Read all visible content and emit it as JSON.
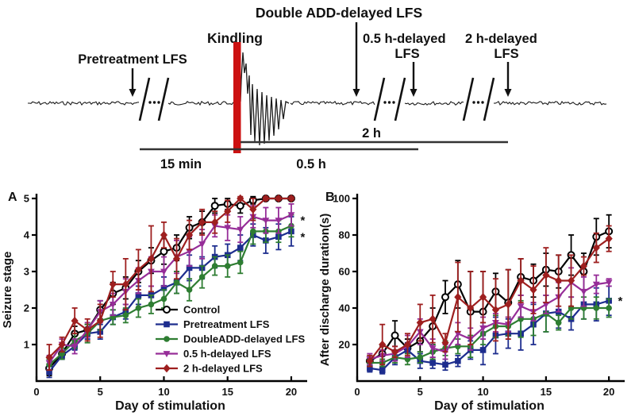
{
  "schematic": {
    "title": "Double ADD-delayed LFS",
    "kindling_label": "Kindling",
    "pretreatment_label": "Pretreatment LFS",
    "half_delay_label": "0.5 h-delayed",
    "two_delay_label": "2 h-delayed",
    "lfs_label_1": "LFS",
    "lfs_label_2": "LFS",
    "duration_15min": "15 min",
    "duration_half_hour": "0.5 h",
    "duration_two_hour": "2 h",
    "kindling_bar_color": "#cc1111",
    "trace_color": "#1a1a1a"
  },
  "colors": {
    "axis": "#000000",
    "control": "#000000",
    "pretreatment": "#1d2d8e",
    "doubleadd": "#2e7d32",
    "half_delayed": "#962d98",
    "two_delayed": "#9e1f1f"
  },
  "chart_data": [
    {
      "id": "A",
      "type": "line",
      "panel_label": "A",
      "xlabel": "Day of stimulation",
      "ylabel": "Seizure stage",
      "xlim": [
        0,
        21
      ],
      "ylim": [
        0,
        5
      ],
      "xticks": [
        0,
        5,
        10,
        15,
        20
      ],
      "yticks": [
        1,
        2,
        3,
        4,
        5
      ],
      "x": [
        1,
        2,
        3,
        4,
        5,
        6,
        7,
        8,
        9,
        10,
        11,
        12,
        13,
        14,
        15,
        16,
        17,
        18,
        19,
        20
      ],
      "legend_show": true,
      "series": [
        {
          "name": "Control",
          "marker": "open-circle",
          "color": "#000000",
          "values": [
            0.35,
            0.75,
            1.3,
            1.4,
            1.95,
            2.4,
            2.55,
            3.0,
            3.3,
            3.55,
            3.65,
            4.2,
            4.35,
            4.8,
            4.85,
            4.8,
            4.95,
            5.0,
            5.0,
            5.0
          ],
          "errors": [
            0.2,
            0.15,
            0.2,
            0.15,
            0.25,
            0.3,
            0.3,
            0.3,
            0.35,
            0.35,
            0.35,
            0.3,
            0.3,
            0.2,
            0.15,
            0.2,
            0.1,
            0.05,
            0.05,
            0.05
          ]
        },
        {
          "name": "Pretreatment LFS",
          "marker": "square",
          "color": "#1d2d8e",
          "values": [
            0.25,
            0.7,
            0.95,
            1.3,
            1.35,
            1.75,
            1.9,
            2.35,
            2.35,
            2.55,
            2.7,
            3.1,
            3.1,
            3.4,
            3.45,
            3.65,
            4.0,
            3.85,
            3.95,
            4.1
          ],
          "errors": [
            0.15,
            0.1,
            0.1,
            0.15,
            0.2,
            0.2,
            0.2,
            0.25,
            0.25,
            0.3,
            0.3,
            0.35,
            0.3,
            0.3,
            0.3,
            0.35,
            0.3,
            0.35,
            0.35,
            0.4
          ]
        },
        {
          "name": "DoubleADD-delayed LFS",
          "marker": "circle",
          "color": "#2e7d32",
          "values": [
            0.45,
            0.75,
            1.1,
            1.3,
            1.65,
            1.75,
            1.8,
            2.0,
            2.1,
            2.25,
            2.7,
            2.5,
            2.85,
            3.15,
            3.15,
            3.25,
            4.1,
            4.1,
            4.1,
            4.25
          ],
          "errors": [
            0.15,
            0.15,
            0.2,
            0.25,
            0.25,
            0.2,
            0.2,
            0.25,
            0.25,
            0.25,
            0.3,
            0.3,
            0.3,
            0.25,
            0.3,
            0.3,
            0.35,
            0.3,
            0.3,
            0.3
          ]
        },
        {
          "name": "0.5 h-delayed LFS",
          "marker": "triangle-down",
          "color": "#962d98",
          "values": [
            0.5,
            1.0,
            0.95,
            1.4,
            1.9,
            2.1,
            2.45,
            2.75,
            3.0,
            3.0,
            3.4,
            3.55,
            3.75,
            4.25,
            4.2,
            4.15,
            4.5,
            4.4,
            4.4,
            4.55
          ],
          "errors": [
            0.2,
            0.15,
            0.2,
            0.2,
            0.3,
            0.3,
            0.35,
            0.35,
            0.4,
            0.4,
            0.45,
            0.4,
            0.4,
            0.3,
            0.35,
            0.35,
            0.3,
            0.35,
            0.35,
            0.3
          ]
        },
        {
          "name": "2 h-delayed LFS",
          "marker": "diamond",
          "color": "#9e1f1f",
          "values": [
            0.65,
            1.0,
            1.65,
            1.4,
            1.65,
            2.65,
            2.65,
            3.05,
            3.35,
            4.0,
            3.35,
            4.0,
            4.35,
            4.35,
            4.65,
            5.0,
            4.7,
            5.0,
            5.0,
            5.0
          ],
          "errors": [
            0.35,
            0.2,
            0.35,
            0.3,
            0.45,
            0.35,
            0.7,
            0.55,
            0.9,
            0.35,
            0.55,
            0.4,
            0.35,
            0.3,
            0.3,
            0.05,
            0.3,
            0.05,
            0.05,
            0.05
          ]
        }
      ],
      "annotations": [
        {
          "text": "*",
          "x": 20.9,
          "y": 4.4
        },
        {
          "text": "*",
          "x": 20.9,
          "y": 3.95
        }
      ]
    },
    {
      "id": "B",
      "type": "line",
      "panel_label": "B",
      "xlabel": "Day of stimulation",
      "ylabel": "After discharge duration(s)",
      "xlim": [
        0,
        21
      ],
      "ylim": [
        0,
        100
      ],
      "xticks": [
        0,
        5,
        10,
        15,
        20
      ],
      "yticks": [
        20,
        40,
        60,
        80,
        100
      ],
      "x": [
        1,
        2,
        3,
        4,
        5,
        6,
        7,
        8,
        9,
        10,
        11,
        12,
        13,
        14,
        15,
        16,
        17,
        18,
        19,
        20
      ],
      "legend_show": false,
      "series": [
        {
          "name": "Control",
          "marker": "open-circle",
          "color": "#000000",
          "values": [
            11,
            15,
            25,
            18,
            22,
            30,
            46,
            53,
            38,
            38,
            49,
            43,
            57,
            55,
            61,
            60,
            69,
            60,
            79,
            82
          ],
          "errors": [
            3,
            4,
            8,
            5,
            6,
            10,
            9,
            13,
            22,
            22,
            10,
            18,
            10,
            9,
            9,
            9,
            11,
            10,
            10,
            9
          ]
        },
        {
          "name": "Pretreatment LFS",
          "marker": "square",
          "color": "#1d2d8e",
          "values": [
            7,
            6,
            13,
            17,
            11,
            10,
            9,
            11,
            17,
            17,
            25,
            26,
            26,
            31,
            37,
            38,
            34,
            42,
            42,
            44
          ],
          "errors": [
            2,
            2,
            4,
            4,
            4,
            3,
            3,
            3,
            5,
            8,
            10,
            8,
            9,
            11,
            10,
            9,
            6,
            8,
            9,
            8
          ]
        },
        {
          "name": "DoubleADD-delayed LFS",
          "marker": "circle",
          "color": "#2e7d32",
          "values": [
            10,
            10,
            13,
            12,
            13,
            16,
            18,
            19,
            19,
            26,
            30,
            30,
            34,
            34,
            37,
            32,
            40,
            40,
            40,
            40
          ],
          "errors": [
            2,
            2,
            3,
            3,
            3,
            4,
            4,
            4,
            6,
            6,
            6,
            5,
            10,
            9,
            10,
            4,
            6,
            6,
            6,
            5
          ]
        },
        {
          "name": "0.5 h-delayed LFS",
          "marker": "triangle-down",
          "color": "#962d98",
          "values": [
            12,
            14,
            15,
            19,
            27,
            18,
            16,
            26,
            23,
            29,
            32,
            31,
            41,
            38,
            42,
            46,
            54,
            49,
            53,
            54
          ],
          "errors": [
            3,
            3,
            4,
            6,
            7,
            5,
            4,
            6,
            6,
            6,
            5,
            4,
            6,
            5,
            5,
            8,
            8,
            8,
            5,
            2
          ]
        },
        {
          "name": "2 h-delayed LFS",
          "marker": "diamond",
          "color": "#9e1f1f",
          "values": [
            11,
            20,
            16,
            20,
            32,
            34,
            21,
            46,
            40,
            46,
            39,
            42,
            55,
            50,
            58,
            55,
            55,
            63,
            73,
            78
          ],
          "errors": [
            3,
            11,
            3,
            6,
            10,
            13,
            5,
            19,
            20,
            14,
            17,
            19,
            12,
            13,
            15,
            14,
            14,
            5,
            8,
            7
          ]
        }
      ],
      "annotations": [
        {
          "text": "*",
          "x": 20.9,
          "y": 44
        }
      ]
    }
  ]
}
